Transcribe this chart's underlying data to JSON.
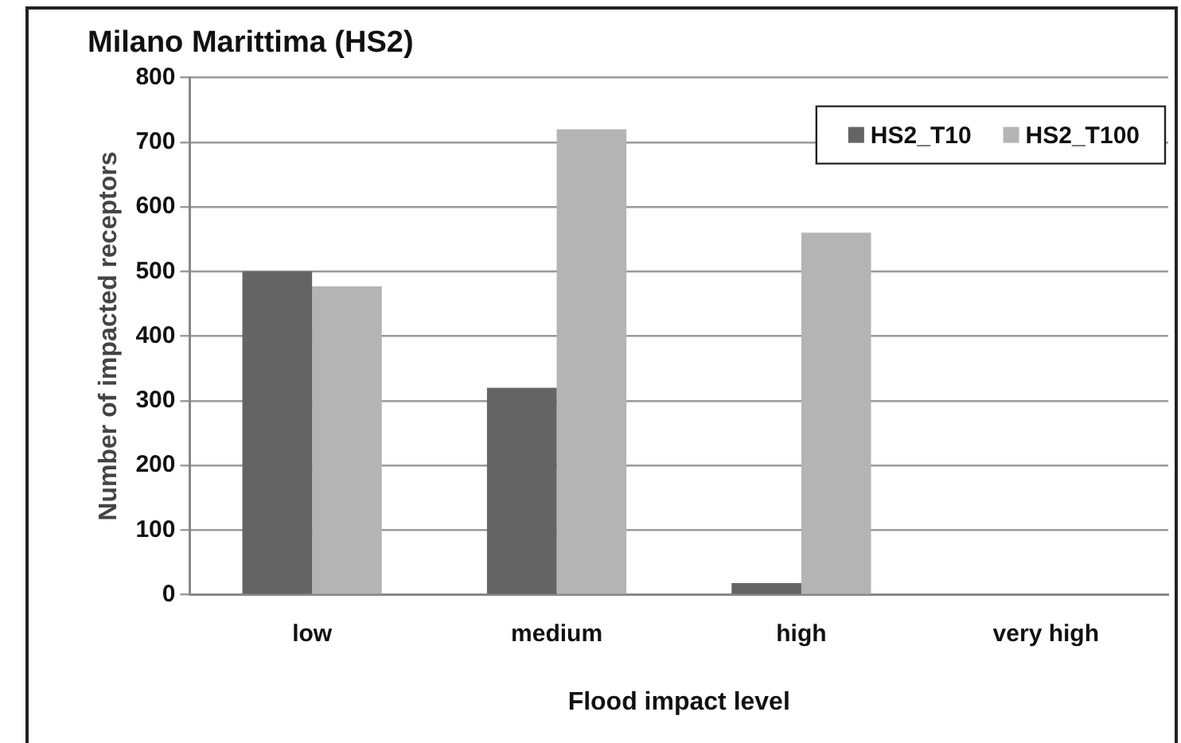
{
  "chart_data": {
    "type": "bar",
    "title": "Milano Marittima (HS2)",
    "xlabel": "Flood impact level",
    "ylabel": "Number of impacted receptors",
    "categories": [
      "low",
      "medium",
      "high",
      "very high"
    ],
    "series": [
      {
        "name": "HS2_T10",
        "color": "#646464",
        "values": [
          500,
          320,
          18,
          0
        ]
      },
      {
        "name": "HS2_T100",
        "color": "#b4b4b4",
        "values": [
          477,
          720,
          560,
          0
        ]
      }
    ],
    "ylim": [
      0,
      800
    ],
    "yticks": [
      0,
      100,
      200,
      300,
      400,
      500,
      600,
      700,
      800
    ],
    "grid": "y",
    "legend": "top right"
  }
}
